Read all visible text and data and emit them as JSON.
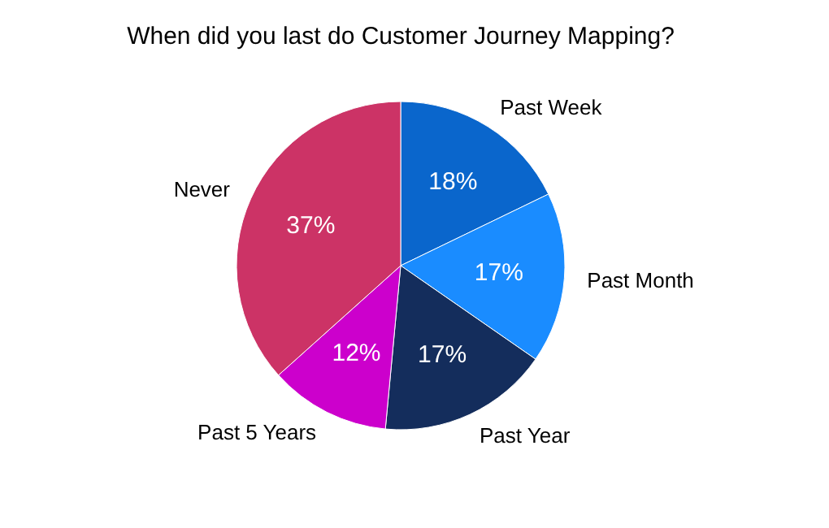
{
  "chart_data": {
    "type": "pie",
    "title": "When did you last do Customer Journey Mapping?",
    "categories": [
      "Past Week",
      "Past Month",
      "Past Year",
      "Past 5 Years",
      "Never"
    ],
    "values": [
      18,
      17,
      17,
      12,
      37
    ],
    "colors": [
      "#0a66cc",
      "#1a8cff",
      "#142d5c",
      "#cc00cc",
      "#cc3366"
    ],
    "value_labels": [
      "18%",
      "17%",
      "17%",
      "12%",
      "37%"
    ],
    "legend": false
  }
}
